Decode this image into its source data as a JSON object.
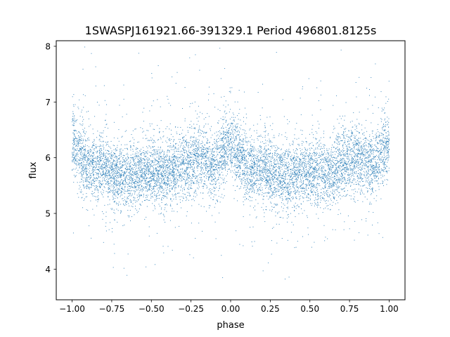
{
  "chart_data": {
    "type": "scatter",
    "title": "1SWASPJ161921.66-391329.1 Period 496801.8125s",
    "xlabel": "phase",
    "ylabel": "flux",
    "xlim": [
      -1.1,
      1.1
    ],
    "ylim": [
      3.45,
      8.1
    ],
    "x_ticks": [
      -1.0,
      -0.75,
      -0.5,
      -0.25,
      0.0,
      0.25,
      0.5,
      0.75,
      1.0
    ],
    "x_tick_labels": [
      "−1.00",
      "−0.75",
      "−0.50",
      "−0.25",
      "0.00",
      "0.25",
      "0.50",
      "0.75",
      "1.00"
    ],
    "y_ticks": [
      4,
      5,
      6,
      7,
      8
    ],
    "y_tick_labels": [
      "4",
      "5",
      "6",
      "7",
      "8"
    ],
    "point_color": "#1f77b4",
    "grid": false,
    "legend": "none",
    "x_range": [
      -1.0,
      1.0
    ],
    "y_range": [
      3.65,
      8.0
    ],
    "baseline_flux": 5.85,
    "trend": [
      {
        "phase": -1.0,
        "flux": 6.3
      },
      {
        "phase": -0.9,
        "flux": 5.85
      },
      {
        "phase": -0.8,
        "flux": 5.8
      },
      {
        "phase": -0.7,
        "flux": 5.65
      },
      {
        "phase": -0.6,
        "flux": 5.7
      },
      {
        "phase": -0.5,
        "flux": 5.75
      },
      {
        "phase": -0.4,
        "flux": 5.7
      },
      {
        "phase": -0.3,
        "flux": 5.9
      },
      {
        "phase": -0.2,
        "flux": 6.0
      },
      {
        "phase": -0.1,
        "flux": 5.85
      },
      {
        "phase": 0.0,
        "flux": 6.3
      },
      {
        "phase": 0.1,
        "flux": 5.85
      },
      {
        "phase": 0.2,
        "flux": 5.8
      },
      {
        "phase": 0.3,
        "flux": 5.65
      },
      {
        "phase": 0.4,
        "flux": 5.7
      },
      {
        "phase": 0.5,
        "flux": 5.75
      },
      {
        "phase": 0.6,
        "flux": 5.7
      },
      {
        "phase": 0.7,
        "flux": 5.9
      },
      {
        "phase": 0.8,
        "flux": 6.0
      },
      {
        "phase": 0.9,
        "flux": 5.85
      },
      {
        "phase": 1.0,
        "flux": 6.3
      }
    ]
  }
}
